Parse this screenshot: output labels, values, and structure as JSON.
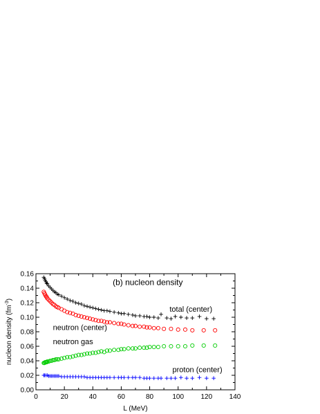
{
  "chart_data": {
    "type": "scatter",
    "title": "(b) nucleon density",
    "xlabel": "L (MeV)",
    "ylabel": "nucleon density (fm",
    "ylabel_sup": "-3",
    "ylabel_tail": ")",
    "xlim": [
      0,
      140
    ],
    "ylim": [
      0.0,
      0.16
    ],
    "x_ticks": [
      0,
      20,
      40,
      60,
      80,
      100,
      120,
      140
    ],
    "x_tick_labels": [
      "0",
      "20",
      "40",
      "60",
      "80",
      "100",
      "120",
      "140"
    ],
    "y_ticks": [
      0.0,
      0.02,
      0.04,
      0.06,
      0.08,
      0.1,
      0.12,
      0.14,
      0.16
    ],
    "y_tick_labels": [
      "0.00",
      "0.02",
      "0.04",
      "0.06",
      "0.08",
      "0.10",
      "0.12",
      "0.14",
      "0.16"
    ],
    "grid": false,
    "annotations": [
      {
        "text": "total (center)",
        "x": 94,
        "y": 0.1075
      },
      {
        "text": "neutron (center)",
        "x": 12,
        "y": 0.0825
      },
      {
        "text": "neutron gas",
        "x": 12,
        "y": 0.063
      },
      {
        "text": "proton (center)",
        "x": 96,
        "y": 0.0245
      }
    ],
    "series": [
      {
        "marker": "plus",
        "color": "#000000",
        "x": [
          5.5,
          6,
          6.5,
          7,
          7.5,
          8,
          9,
          10,
          11,
          12,
          13,
          14,
          15,
          16,
          18,
          20,
          22,
          24,
          26,
          28,
          30,
          32,
          34,
          36,
          38,
          40,
          42,
          44,
          46,
          48,
          50,
          52,
          55,
          58,
          60,
          62,
          65,
          68,
          70,
          73,
          76,
          78,
          80,
          83,
          86,
          88,
          92,
          95,
          98,
          102,
          106,
          110,
          115,
          120,
          125
        ],
        "y": [
          0.155,
          0.153,
          0.151,
          0.149,
          0.147,
          0.146,
          0.143,
          0.141,
          0.139,
          0.137,
          0.135,
          0.134,
          0.132,
          0.131,
          0.129,
          0.127,
          0.125,
          0.123,
          0.122,
          0.12,
          0.119,
          0.118,
          0.116,
          0.115,
          0.114,
          0.113,
          0.112,
          0.111,
          0.11,
          0.109,
          0.109,
          0.108,
          0.107,
          0.106,
          0.105,
          0.105,
          0.104,
          0.103,
          0.102,
          0.102,
          0.101,
          0.101,
          0.1,
          0.1,
          0.099,
          0.104,
          0.099,
          0.098,
          0.101,
          0.1,
          0.099,
          0.099,
          0.101,
          0.098,
          0.098
        ]
      },
      {
        "marker": "circle",
        "color": "#ff0000",
        "x": [
          5.5,
          6,
          6.5,
          7,
          7.5,
          8,
          9,
          10,
          11,
          12,
          13,
          14,
          15,
          16,
          18,
          20,
          22,
          24,
          26,
          28,
          30,
          32,
          34,
          36,
          38,
          40,
          42,
          44,
          46,
          48,
          50,
          52,
          55,
          58,
          60,
          62,
          65,
          68,
          70,
          73,
          76,
          78,
          80,
          83,
          86,
          90,
          95,
          100,
          105,
          110,
          118,
          126
        ],
        "y": [
          0.135,
          0.133,
          0.131,
          0.129,
          0.128,
          0.126,
          0.124,
          0.122,
          0.12,
          0.118,
          0.117,
          0.115,
          0.114,
          0.113,
          0.111,
          0.109,
          0.107,
          0.106,
          0.105,
          0.103,
          0.102,
          0.101,
          0.1,
          0.099,
          0.098,
          0.097,
          0.096,
          0.095,
          0.095,
          0.094,
          0.093,
          0.093,
          0.092,
          0.091,
          0.091,
          0.09,
          0.089,
          0.088,
          0.088,
          0.087,
          0.087,
          0.086,
          0.086,
          0.085,
          0.085,
          0.084,
          0.084,
          0.083,
          0.083,
          0.082,
          0.082,
          0.082
        ]
      },
      {
        "marker": "circle",
        "color": "#00cc00",
        "x": [
          5.5,
          6,
          6.5,
          7,
          7.5,
          8,
          9,
          10,
          11,
          12,
          13,
          14,
          15,
          16,
          18,
          20,
          22,
          24,
          26,
          28,
          30,
          32,
          34,
          36,
          38,
          40,
          42,
          44,
          46,
          48,
          50,
          52,
          55,
          58,
          60,
          62,
          65,
          68,
          70,
          73,
          76,
          78,
          80,
          83,
          86,
          90,
          95,
          100,
          105,
          110,
          118,
          126
        ],
        "y": [
          0.037,
          0.037,
          0.038,
          0.038,
          0.038,
          0.039,
          0.039,
          0.04,
          0.04,
          0.041,
          0.041,
          0.042,
          0.042,
          0.042,
          0.043,
          0.044,
          0.045,
          0.045,
          0.046,
          0.047,
          0.048,
          0.048,
          0.049,
          0.05,
          0.05,
          0.051,
          0.051,
          0.052,
          0.053,
          0.052,
          0.054,
          0.054,
          0.055,
          0.055,
          0.056,
          0.056,
          0.057,
          0.057,
          0.057,
          0.058,
          0.058,
          0.058,
          0.059,
          0.059,
          0.059,
          0.06,
          0.06,
          0.06,
          0.06,
          0.061,
          0.061,
          0.061
        ]
      },
      {
        "marker": "plus",
        "color": "#0000ff",
        "x": [
          5.5,
          6,
          7,
          8,
          9,
          10,
          11,
          12,
          13,
          14,
          15,
          16,
          18,
          20,
          22,
          24,
          26,
          28,
          30,
          32,
          34,
          36,
          38,
          40,
          42,
          44,
          46,
          48,
          50,
          52,
          55,
          58,
          60,
          62,
          65,
          68,
          70,
          73,
          76,
          78,
          80,
          83,
          86,
          88,
          92,
          95,
          98,
          102,
          106,
          110,
          115,
          120,
          125
        ],
        "y": [
          0.02,
          0.02,
          0.02,
          0.02,
          0.019,
          0.019,
          0.019,
          0.019,
          0.019,
          0.019,
          0.019,
          0.019,
          0.018,
          0.018,
          0.018,
          0.018,
          0.018,
          0.018,
          0.018,
          0.018,
          0.018,
          0.017,
          0.017,
          0.017,
          0.017,
          0.017,
          0.017,
          0.017,
          0.017,
          0.017,
          0.017,
          0.017,
          0.017,
          0.017,
          0.017,
          0.017,
          0.017,
          0.017,
          0.016,
          0.016,
          0.016,
          0.016,
          0.016,
          0.016,
          0.016,
          0.016,
          0.016,
          0.017,
          0.016,
          0.016,
          0.017,
          0.016,
          0.016
        ]
      }
    ]
  }
}
